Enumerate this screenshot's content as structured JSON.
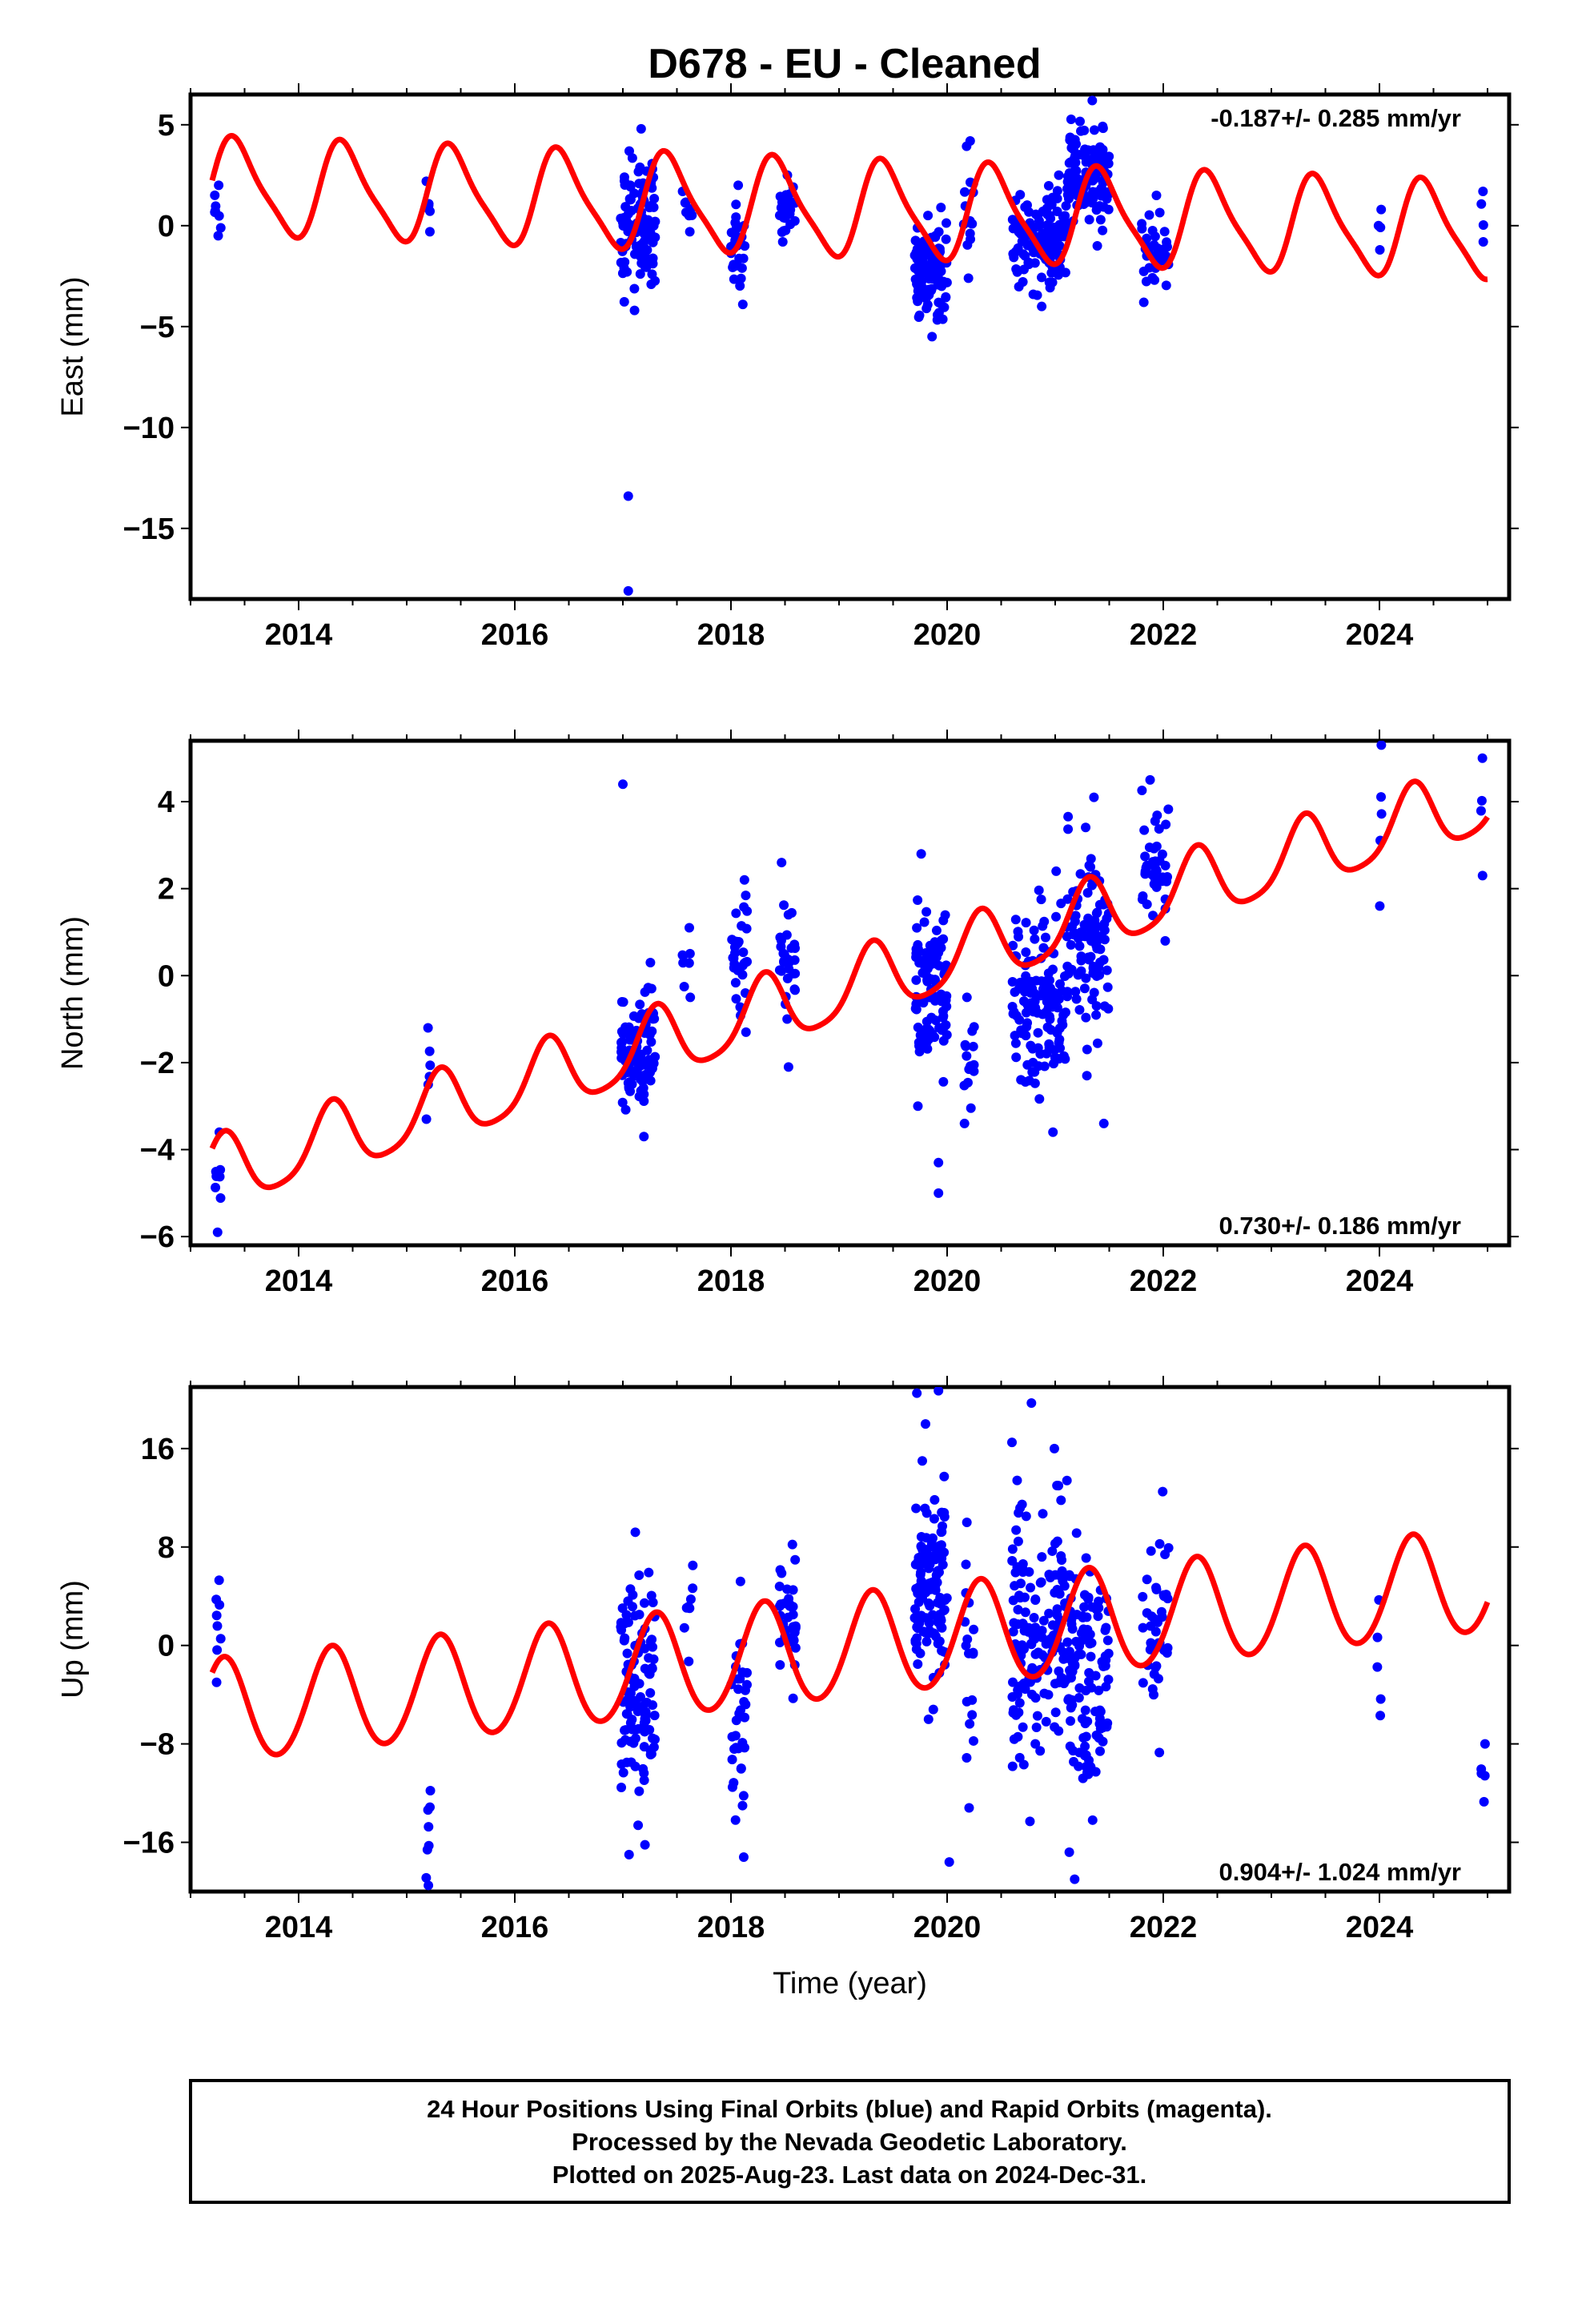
{
  "title": "D678  - EU - Cleaned",
  "colors": {
    "data": "#0000ff",
    "model": "#ff0000",
    "frame": "#000000"
  },
  "chart_data": [
    {
      "type": "scatter",
      "ylabel": "East (mm)",
      "xlabel": "",
      "xlim": [
        2013.0,
        2025.2
      ],
      "ylim": [
        -18.5,
        6.5
      ],
      "xticks": [
        2014,
        2016,
        2018,
        2020,
        2022,
        2024
      ],
      "yticks": [
        -15,
        -10,
        -5,
        0,
        5
      ],
      "rate_label": "-0.187+/- 0.285 mm/yr",
      "rate_position": "top-right",
      "model": {
        "name": "",
        "slope": -0.187,
        "offset": 1.9,
        "amp_annual": 2.3,
        "phase_annual": 0.15,
        "amp_semi": 0.5,
        "phase_semi": 0.0
      },
      "clusters": [
        {
          "t0": 2013.22,
          "t1": 2013.28,
          "n": 8,
          "ymin": -0.5,
          "ymax": 2.0
        },
        {
          "t0": 2015.18,
          "t1": 2015.22,
          "n": 6,
          "ymin": -0.3,
          "ymax": 2.2
        },
        {
          "t0": 2016.98,
          "t1": 2017.3,
          "n": 110,
          "ymin": -4.2,
          "ymax": 4.8
        },
        {
          "t0": 2017.55,
          "t1": 2017.65,
          "n": 8,
          "ymin": -0.3,
          "ymax": 1.7
        },
        {
          "t0": 2018.0,
          "t1": 2018.15,
          "n": 30,
          "ymin": -3.9,
          "ymax": 2.0
        },
        {
          "t0": 2018.45,
          "t1": 2018.6,
          "n": 30,
          "ymin": -0.8,
          "ymax": 2.5
        },
        {
          "t0": 2019.7,
          "t1": 2020.0,
          "n": 110,
          "ymin": -5.5,
          "ymax": 0.9
        },
        {
          "t0": 2020.15,
          "t1": 2020.25,
          "n": 15,
          "ymin": -2.6,
          "ymax": 4.2
        },
        {
          "t0": 2020.6,
          "t1": 2021.1,
          "n": 140,
          "ymin": -4.0,
          "ymax": 2.5
        },
        {
          "t0": 2021.1,
          "t1": 2021.5,
          "n": 110,
          "ymin": -1.0,
          "ymax": 6.2
        },
        {
          "t0": 2021.8,
          "t1": 2022.05,
          "n": 40,
          "ymin": -3.8,
          "ymax": 1.5
        },
        {
          "t0": 2023.98,
          "t1": 2024.02,
          "n": 4,
          "ymin": -1.2,
          "ymax": 0.8
        },
        {
          "t0": 2024.94,
          "t1": 2024.98,
          "n": 4,
          "ymin": -0.8,
          "ymax": 1.7
        }
      ],
      "outliers": [
        [
          2017.05,
          -13.4
        ],
        [
          2017.05,
          -18.1
        ]
      ]
    },
    {
      "type": "scatter",
      "ylabel": "North (mm)",
      "xlabel": "",
      "xlim": [
        2013.0,
        2025.2
      ],
      "ylim": [
        -6.2,
        5.4
      ],
      "xticks": [
        2014,
        2016,
        2018,
        2020,
        2022,
        2024
      ],
      "yticks": [
        -6,
        -4,
        -2,
        0,
        2,
        4
      ],
      "rate_label": "0.730+/- 0.186 mm/yr",
      "rate_position": "bottom-right",
      "model": {
        "name": "",
        "slope": 0.73,
        "offset": -4.6,
        "amp_annual": 0.8,
        "phase_annual": 0.9,
        "amp_semi": 0.15,
        "phase_semi": 0.0
      },
      "clusters": [
        {
          "t0": 2013.22,
          "t1": 2013.28,
          "n": 8,
          "ymin": -5.9,
          "ymax": -3.6
        },
        {
          "t0": 2015.18,
          "t1": 2015.22,
          "n": 6,
          "ymin": -3.3,
          "ymax": -1.2
        },
        {
          "t0": 2016.98,
          "t1": 2017.3,
          "n": 100,
          "ymin": -3.7,
          "ymax": 0.3
        },
        {
          "t0": 2017.55,
          "t1": 2017.65,
          "n": 8,
          "ymin": -0.5,
          "ymax": 1.1
        },
        {
          "t0": 2018.0,
          "t1": 2018.15,
          "n": 30,
          "ymin": -1.3,
          "ymax": 2.2
        },
        {
          "t0": 2018.45,
          "t1": 2018.6,
          "n": 30,
          "ymin": -2.1,
          "ymax": 2.6
        },
        {
          "t0": 2019.7,
          "t1": 2020.0,
          "n": 100,
          "ymin": -3.0,
          "ymax": 2.8
        },
        {
          "t0": 2020.15,
          "t1": 2020.25,
          "n": 15,
          "ymin": -3.4,
          "ymax": -0.5
        },
        {
          "t0": 2020.6,
          "t1": 2021.1,
          "n": 130,
          "ymin": -3.6,
          "ymax": 2.4
        },
        {
          "t0": 2021.1,
          "t1": 2021.5,
          "n": 100,
          "ymin": -2.3,
          "ymax": 4.1
        },
        {
          "t0": 2021.8,
          "t1": 2022.05,
          "n": 40,
          "ymin": 0.8,
          "ymax": 4.5
        },
        {
          "t0": 2023.98,
          "t1": 2024.02,
          "n": 5,
          "ymin": 1.6,
          "ymax": 5.3
        },
        {
          "t0": 2024.94,
          "t1": 2024.98,
          "n": 4,
          "ymin": 2.3,
          "ymax": 5.0
        }
      ],
      "outliers": [
        [
          2017.0,
          4.4
        ],
        [
          2019.92,
          -5.0
        ],
        [
          2019.92,
          -4.3
        ],
        [
          2021.45,
          -3.4
        ]
      ]
    },
    {
      "type": "scatter",
      "ylabel": "Up (mm)",
      "xlabel": "Time (year)",
      "xlim": [
        2013.0,
        2025.2
      ],
      "ylim": [
        -20,
        21
      ],
      "xticks": [
        2014,
        2016,
        2018,
        2020,
        2022,
        2024
      ],
      "yticks": [
        -16,
        -8,
        0,
        8,
        16
      ],
      "rate_label": "0.904+/- 1.024 mm/yr",
      "rate_position": "bottom-right",
      "model": {
        "name": "",
        "slope": 0.904,
        "offset": -5.5,
        "amp_annual": 4.2,
        "phase_annual": 0.9,
        "amp_semi": 0.3,
        "phase_semi": 0.0
      },
      "clusters": [
        {
          "t0": 2013.22,
          "t1": 2013.28,
          "n": 8,
          "ymin": -3.0,
          "ymax": 5.3
        },
        {
          "t0": 2015.18,
          "t1": 2015.22,
          "n": 8,
          "ymin": -19.5,
          "ymax": -11.8
        },
        {
          "t0": 2016.98,
          "t1": 2017.3,
          "n": 110,
          "ymin": -17.0,
          "ymax": 9.2
        },
        {
          "t0": 2017.55,
          "t1": 2017.65,
          "n": 8,
          "ymin": -1.3,
          "ymax": 6.5
        },
        {
          "t0": 2018.0,
          "t1": 2018.15,
          "n": 35,
          "ymin": -17.2,
          "ymax": 5.2
        },
        {
          "t0": 2018.45,
          "t1": 2018.6,
          "n": 35,
          "ymin": -4.3,
          "ymax": 8.2
        },
        {
          "t0": 2019.7,
          "t1": 2020.0,
          "n": 120,
          "ymin": -6.0,
          "ymax": 15.0
        },
        {
          "t0": 2020.15,
          "t1": 2020.25,
          "n": 18,
          "ymin": -13.2,
          "ymax": 10.0
        },
        {
          "t0": 2020.6,
          "t1": 2021.1,
          "n": 150,
          "ymin": -14.3,
          "ymax": 16.0
        },
        {
          "t0": 2021.1,
          "t1": 2021.5,
          "n": 120,
          "ymin": -16.8,
          "ymax": 13.4
        },
        {
          "t0": 2021.8,
          "t1": 2022.05,
          "n": 40,
          "ymin": -8.7,
          "ymax": 12.5
        },
        {
          "t0": 2023.98,
          "t1": 2024.02,
          "n": 5,
          "ymin": -5.7,
          "ymax": 3.7
        },
        {
          "t0": 2024.94,
          "t1": 2024.98,
          "n": 5,
          "ymin": -12.7,
          "ymax": -8.0
        }
      ],
      "outliers": [
        [
          2019.72,
          20.5
        ],
        [
          2019.92,
          20.7
        ],
        [
          2019.8,
          18.0
        ],
        [
          2020.02,
          -17.6
        ],
        [
          2020.78,
          19.7
        ],
        [
          2020.6,
          16.5
        ],
        [
          2021.18,
          -19.0
        ]
      ]
    }
  ],
  "footer": {
    "line1": "24 Hour Positions Using Final Orbits (blue) and Rapid Orbits (magenta).",
    "line2": "Processed by the Nevada Geodetic Laboratory.",
    "line3": "Plotted on 2025-Aug-23. Last data on 2024-Dec-31."
  }
}
